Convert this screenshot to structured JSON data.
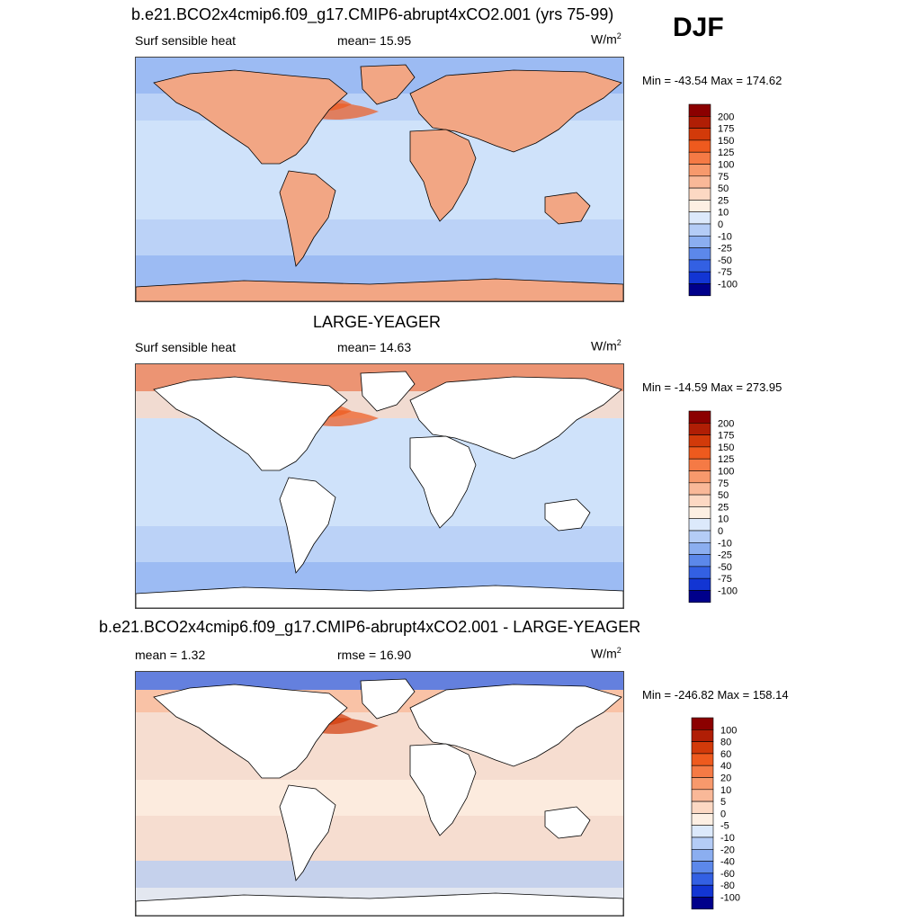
{
  "season": "DJF",
  "panels": [
    {
      "title": "b.e21.BCO2x4cmip6.f09_g17.CMIP6-abrupt4xCO2.001 (yrs 75-99)",
      "left_label": "Surf sensible heat",
      "center_label": "mean=  15.95",
      "units": "W/m",
      "units_sup": "2",
      "minmax": "Min = -43.54 Max = 174.62",
      "land_fill": "#f2a684",
      "ocean_fill": "#cfe2fa"
    },
    {
      "title": "LARGE-YEAGER",
      "left_label": "Surf sensible heat",
      "center_label": "mean=  14.63",
      "units": "W/m",
      "units_sup": "2",
      "minmax": "Min = -14.59 Max = 273.95",
      "land_fill": "#ffffff",
      "ocean_fill": "#cfe2fa"
    },
    {
      "title": "b.e21.BCO2x4cmip6.f09_g17.CMIP6-abrupt4xCO2.001 - LARGE-YEAGER",
      "left_label": "mean =   1.32",
      "center_label": "rmse =  16.90",
      "units": "W/m",
      "units_sup": "2",
      "minmax": "Min = -246.82 Max = 158.14",
      "land_fill": "#ffffff",
      "ocean_fill": "#f6ddd0"
    }
  ],
  "chart_data": [
    {
      "type": "heatmap",
      "title": "b.e21.BCO2x4cmip6.f09_g17.CMIP6-abrupt4xCO2.001 (yrs 75-99)",
      "variable": "Surf sensible heat",
      "mean": 15.95,
      "min": -43.54,
      "max": 174.62,
      "units": "W/m2",
      "colorbar_levels": [
        "200",
        "175",
        "150",
        "125",
        "100",
        "75",
        "50",
        "25",
        "10",
        "0",
        "-10",
        "-25",
        "-50",
        "-75",
        "-100"
      ],
      "colorbar_colors": [
        "#8b0000",
        "#b01e05",
        "#d23a0a",
        "#ee5a1e",
        "#f57a45",
        "#f7996c",
        "#f9b898",
        "#fcd8c3",
        "#fdefe3",
        "#dce9fb",
        "#b4ccf6",
        "#8baef0",
        "#5c88ea",
        "#3360e3",
        "#1235d3",
        "#00008b"
      ]
    },
    {
      "type": "heatmap",
      "title": "LARGE-YEAGER",
      "variable": "Surf sensible heat",
      "mean": 14.63,
      "min": -14.59,
      "max": 273.95,
      "units": "W/m2",
      "colorbar_levels": [
        "200",
        "175",
        "150",
        "125",
        "100",
        "75",
        "50",
        "25",
        "10",
        "0",
        "-10",
        "-25",
        "-50",
        "-75",
        "-100"
      ],
      "colorbar_colors": [
        "#8b0000",
        "#b01e05",
        "#d23a0a",
        "#ee5a1e",
        "#f57a45",
        "#f7996c",
        "#f9b898",
        "#fcd8c3",
        "#fdefe3",
        "#dce9fb",
        "#b4ccf6",
        "#8baef0",
        "#5c88ea",
        "#3360e3",
        "#1235d3",
        "#00008b"
      ]
    },
    {
      "type": "heatmap",
      "title": "b.e21.BCO2x4cmip6.f09_g17.CMIP6-abrupt4xCO2.001 - LARGE-YEAGER",
      "mean": 1.32,
      "rmse": 16.9,
      "min": -246.82,
      "max": 158.14,
      "units": "W/m2",
      "colorbar_levels": [
        "100",
        "80",
        "60",
        "40",
        "20",
        "10",
        "5",
        "0",
        "-5",
        "-10",
        "-20",
        "-40",
        "-60",
        "-80",
        "-100"
      ],
      "colorbar_colors": [
        "#8b0000",
        "#b01e05",
        "#d23a0a",
        "#ee5a1e",
        "#f57a45",
        "#f7996c",
        "#f9b898",
        "#fcd8c3",
        "#fdefe3",
        "#dce9fb",
        "#b4ccf6",
        "#8baef0",
        "#5c88ea",
        "#3360e3",
        "#1235d3",
        "#00008b"
      ]
    }
  ]
}
